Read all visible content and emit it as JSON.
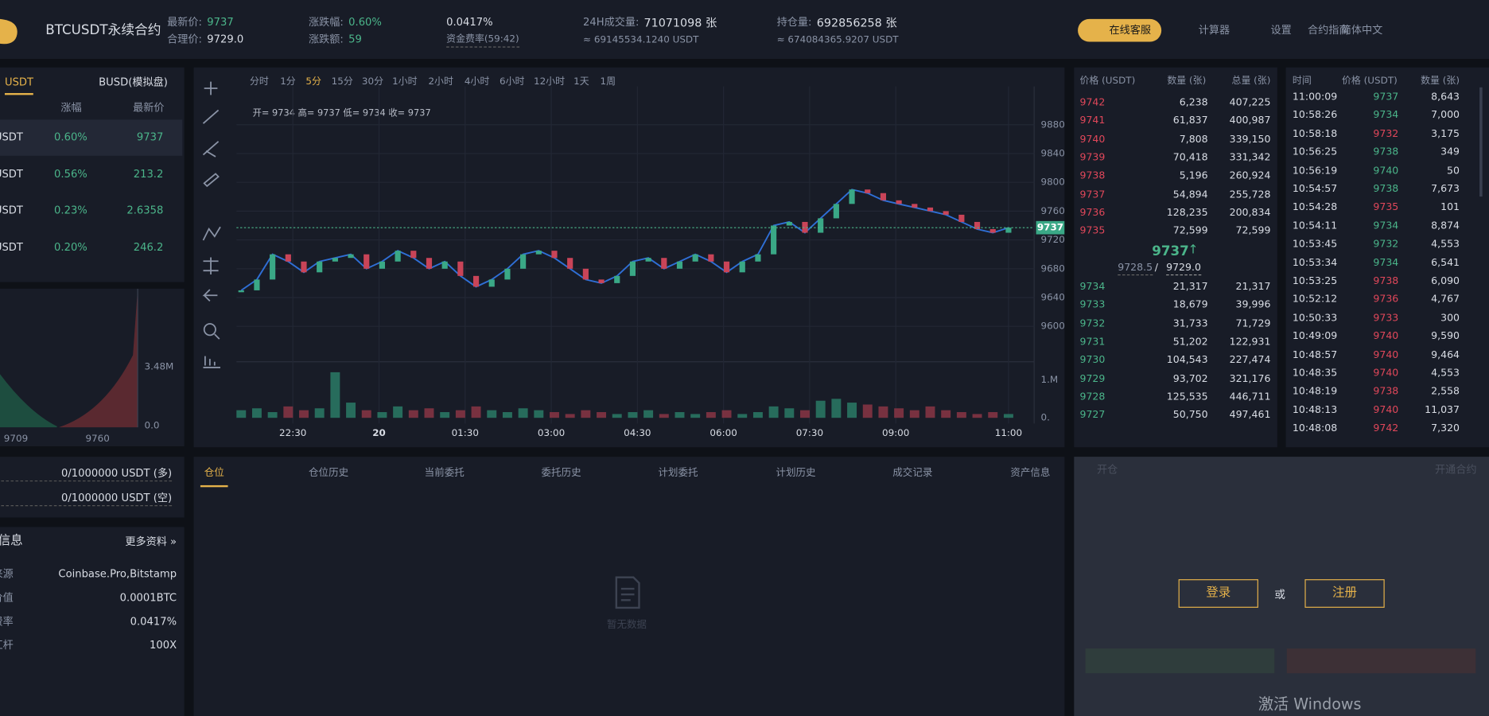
{
  "header": {
    "brand": "BTCUSDT永续合约",
    "last_price_label": "最新价:",
    "last_price": "9737",
    "fair_price_label": "合理价:",
    "fair_price": "9729.0",
    "change_pct_label": "涨跌幅:",
    "change_pct": "0.60%",
    "change_label": "涨跌额:",
    "change": "59",
    "funding_rate": "0.0417%",
    "funding_label": "资金费率(59:42)",
    "volume_label": "24H成交量:",
    "volume": "71071098 张",
    "volume_usdt": "≈ 69145534.1240 USDT",
    "oi_label": "持仓量:",
    "oi": "692856258 张",
    "oi_usdt": "≈ 674084365.9207 USDT",
    "support": "在线客服",
    "nav": [
      "计算器",
      "设置",
      "合约指南",
      "简体中文"
    ]
  },
  "markets": {
    "tabs": [
      "USDT",
      "BUSD(模拟盘)"
    ],
    "headers": [
      "涨幅",
      "最新价"
    ],
    "rows": [
      [
        "USDT",
        "0.60%",
        "9737"
      ],
      [
        "USDT",
        "0.56%",
        "213.2"
      ],
      [
        "USDT",
        "0.23%",
        "2.6358"
      ],
      [
        "USDT",
        "0.20%",
        "246.2"
      ]
    ]
  },
  "depth": {
    "labels": [
      "3.48M",
      "0.0",
      "9709",
      "9760"
    ]
  },
  "account": {
    "rows": [
      "0/1000000 USDT (多)",
      "0/1000000 USDT (空)"
    ]
  },
  "info": {
    "title": "信息",
    "more": "更多资料 »",
    "rows": [
      [
        "来源",
        "Coinbase.Pro,Bitstamp"
      ],
      [
        "价值",
        "0.0001BTC"
      ],
      [
        "费率",
        "0.0417%"
      ],
      [
        "杠杆",
        "100X"
      ]
    ]
  },
  "toolbar": {
    "intervals": [
      "分时",
      "1分",
      "5分",
      "15分",
      "30分",
      "1小时",
      "2小时",
      "4小时",
      "6小时",
      "12小时",
      "1天",
      "1周"
    ],
    "ohlc": "开= 9734 高= 9737 低= 9734 收= 9737"
  },
  "chart_data": {
    "type": "line",
    "color": "#2f6fd6",
    "values": [
      9650,
      9665,
      9700,
      9690,
      9675,
      9690,
      9695,
      9700,
      9680,
      9690,
      9705,
      9695,
      9680,
      9690,
      9670,
      9655,
      9665,
      9680,
      9700,
      9705,
      9695,
      9680,
      9665,
      9660,
      9670,
      9690,
      9695,
      9680,
      9690,
      9700,
      9690,
      9675,
      9690,
      9700,
      9740,
      9745,
      9730,
      9750,
      9770,
      9790,
      9785,
      9775,
      9770,
      9765,
      9760,
      9755,
      9745,
      9735,
      9730,
      9737
    ],
    "ylim": [
      9560,
      9920
    ],
    "yticks": [
      9880,
      9840,
      9800,
      9760,
      9720,
      9680,
      9640,
      9600
    ],
    "grid": true,
    "xticks": [
      {
        "value": 3.3,
        "label": "22:30"
      },
      {
        "value": 8.8,
        "label": "20"
      },
      {
        "value": 14.3,
        "label": "01:30"
      },
      {
        "value": 19.8,
        "label": "03:00"
      },
      {
        "value": 25.3,
        "label": "04:30"
      },
      {
        "value": 30.8,
        "label": "06:00"
      },
      {
        "value": 36.3,
        "label": "07:30"
      },
      {
        "value": 41.8,
        "label": "09:00"
      },
      {
        "value": 49,
        "label": "11:00"
      }
    ],
    "last_price": 9737,
    "volume": {
      "values": [
        0.2,
        0.25,
        0.15,
        0.3,
        0.2,
        0.25,
        1.2,
        0.4,
        0.2,
        0.15,
        0.3,
        0.2,
        0.25,
        0.15,
        0.2,
        0.3,
        0.2,
        0.15,
        0.25,
        0.2,
        0.15,
        0.1,
        0.2,
        0.15,
        0.1,
        0.15,
        0.2,
        0.1,
        0.15,
        0.1,
        0.15,
        0.2,
        0.1,
        0.15,
        0.3,
        0.25,
        0.2,
        0.45,
        0.5,
        0.4,
        0.35,
        0.3,
        0.25,
        0.2,
        0.3,
        0.2,
        0.15,
        0.1,
        0.15,
        0.1
      ],
      "ylim": [
        0,
        1.3
      ],
      "yticks": [
        {
          "value": 1,
          "label": "1.M"
        },
        {
          "value": 0,
          "label": "0."
        }
      ]
    }
  },
  "orderbook": {
    "headers": [
      "价格 (USDT)",
      "数量 (张)",
      "总量 (张)"
    ],
    "asks": [
      [
        "9742",
        "6,238",
        "407,225"
      ],
      [
        "9741",
        "61,837",
        "400,987"
      ],
      [
        "9740",
        "7,808",
        "339,150"
      ],
      [
        "9739",
        "70,418",
        "331,342"
      ],
      [
        "9738",
        "5,196",
        "260,924"
      ],
      [
        "9737",
        "54,894",
        "255,728"
      ],
      [
        "9736",
        "128,235",
        "200,834"
      ],
      [
        "9735",
        "72,599",
        "72,599"
      ]
    ],
    "mid": "9737",
    "mid_arrow": "↑",
    "index_price": "9728.5",
    "sep": "/",
    "fair": "9729.0",
    "bids": [
      [
        "9734",
        "21,317",
        "21,317"
      ],
      [
        "9733",
        "18,679",
        "39,996"
      ],
      [
        "9732",
        "31,733",
        "71,729"
      ],
      [
        "9731",
        "51,202",
        "122,931"
      ],
      [
        "9730",
        "104,543",
        "227,474"
      ],
      [
        "9729",
        "93,702",
        "321,176"
      ],
      [
        "9728",
        "125,535",
        "446,711"
      ],
      [
        "9727",
        "50,750",
        "497,461"
      ]
    ]
  },
  "trades": {
    "headers": [
      "时间",
      "价格 (USDT)",
      "数量 (张)"
    ],
    "rows": [
      [
        "11:00:09",
        "9737",
        "8,643"
      ],
      [
        "10:58:26",
        "9734",
        "7,000"
      ],
      [
        "10:58:18",
        "9732",
        "3,175"
      ],
      [
        "10:56:25",
        "9738",
        "349"
      ],
      [
        "10:56:19",
        "9740",
        "50"
      ],
      [
        "10:54:57",
        "9738",
        "7,673"
      ],
      [
        "10:54:28",
        "9735",
        "101"
      ],
      [
        "10:54:11",
        "9734",
        "8,874"
      ],
      [
        "10:53:45",
        "9732",
        "4,553"
      ],
      [
        "10:53:34",
        "9734",
        "6,541"
      ],
      [
        "10:53:25",
        "9738",
        "6,090"
      ],
      [
        "10:52:12",
        "9736",
        "4,767"
      ],
      [
        "10:50:33",
        "9733",
        "300"
      ],
      [
        "10:49:09",
        "9740",
        "9,590"
      ],
      [
        "10:48:57",
        "9740",
        "9,464"
      ],
      [
        "10:48:35",
        "9740",
        "4,553"
      ],
      [
        "10:48:19",
        "9738",
        "2,558"
      ],
      [
        "10:48:13",
        "9740",
        "11,037"
      ],
      [
        "10:48:08",
        "9742",
        "7,320"
      ]
    ],
    "sides": [
      "buy",
      "buy",
      "sell",
      "buy",
      "buy",
      "buy",
      "sell",
      "buy",
      "buy",
      "buy",
      "sell",
      "sell",
      "sell",
      "sell",
      "sell",
      "sell",
      "sell",
      "sell",
      "sell"
    ],
    "colors": {
      "buy": "#4bb58a",
      "sell": "#e0475a"
    }
  },
  "positions": {
    "tabs": [
      "仓位",
      "仓位历史",
      "当前委托",
      "委托历史",
      "计划委托",
      "计划历史",
      "成交记录",
      "资产信息"
    ],
    "empty": "暂无数据"
  },
  "trade_panel": {
    "open": "开仓",
    "activate": "开通合约",
    "login": "登录",
    "or": "或",
    "register": "注册",
    "watermark": "激活 Windows"
  }
}
